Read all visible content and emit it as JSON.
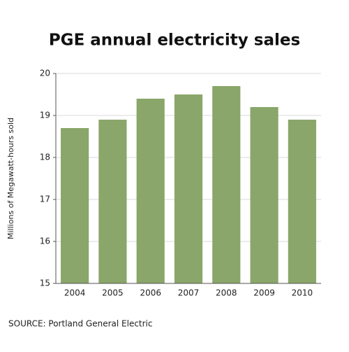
{
  "chart_data": {
    "type": "bar",
    "title": "PGE annual electricity sales",
    "y_label": "Millions of Megawatt-hours sold",
    "source": "SOURCE: Portland General Electric",
    "categories": [
      "2004",
      "2005",
      "2006",
      "2007",
      "2008",
      "2009",
      "2010"
    ],
    "values": [
      18.7,
      18.9,
      19.4,
      19.5,
      19.7,
      19.2,
      18.9
    ],
    "color": "#8aa66a",
    "ylim": [
      15,
      20
    ],
    "yticks": [
      15,
      16,
      17,
      18,
      19,
      20
    ],
    "grid": true
  }
}
